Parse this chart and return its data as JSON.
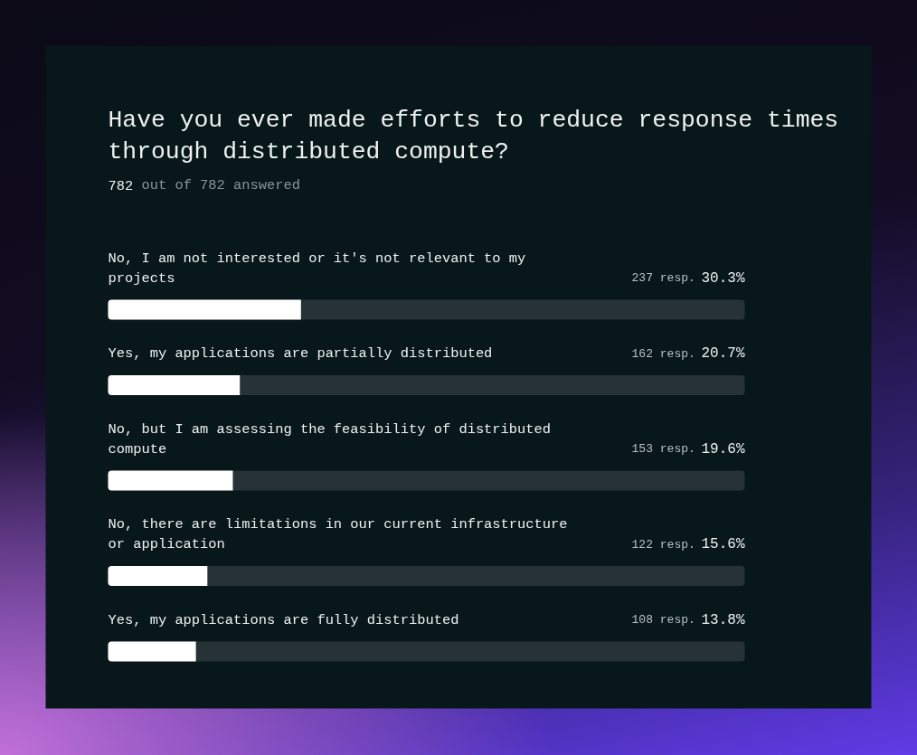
{
  "chart_data": {
    "type": "bar",
    "orientation": "horizontal",
    "title": "Have you ever made efforts to reduce response times through distributed compute?",
    "subtitle": "782 out of 782 answered",
    "categories": [
      "No, I am not interested or it's not relevant to my projects",
      "Yes, my applications are partially distributed",
      "No, but I am assessing the feasibility of distributed compute",
      "No, there are limitations in our current infrastructure or application",
      "Yes, my applications are fully distributed"
    ],
    "values": [
      30.3,
      20.7,
      19.6,
      15.6,
      13.8
    ],
    "value_labels": [
      "237 resp. 30.3%",
      "162 resp. 20.7%",
      "153 resp. 19.6%",
      "122 resp. 15.6%",
      "108 resp. 13.8%"
    ],
    "color": "#ffffff",
    "xlim": [
      0,
      100
    ]
  }
}
